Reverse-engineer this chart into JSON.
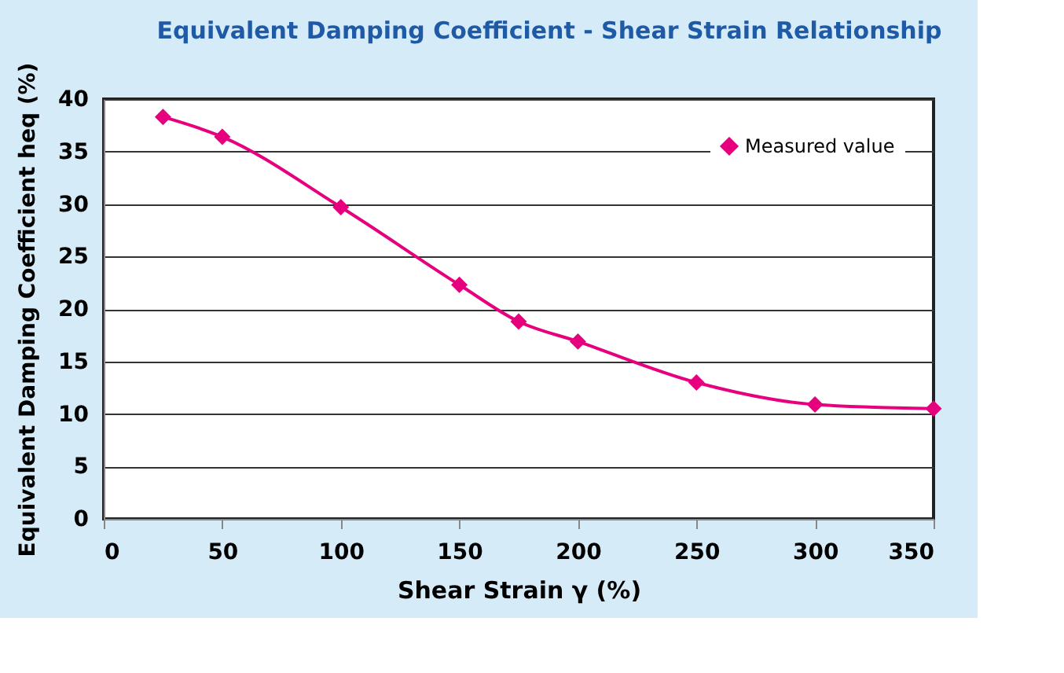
{
  "chart_data": {
    "type": "line",
    "title": "Equivalent Damping Coefficient - Shear Strain Relationship",
    "xlabel": "Shear Strain γ (%)",
    "ylabel": "Equivalent Damping Coefficient heq (%)",
    "x": [
      25,
      50,
      100,
      150,
      175,
      200,
      250,
      300,
      350
    ],
    "series": [
      {
        "name": "Measured value",
        "color": "#e6007e",
        "values": [
          38.3,
          36.4,
          29.7,
          22.3,
          18.8,
          16.9,
          13.0,
          10.9,
          10.5
        ]
      }
    ],
    "xlim": [
      0,
      350
    ],
    "xticks": [
      0,
      50,
      100,
      150,
      200,
      250,
      300,
      350
    ],
    "ylim": [
      0,
      40
    ],
    "yticks": [
      0,
      5,
      10,
      15,
      20,
      25,
      30,
      35,
      40
    ],
    "grid": "y",
    "legend": "top right",
    "marker": "diamond",
    "line_style": "solid"
  }
}
